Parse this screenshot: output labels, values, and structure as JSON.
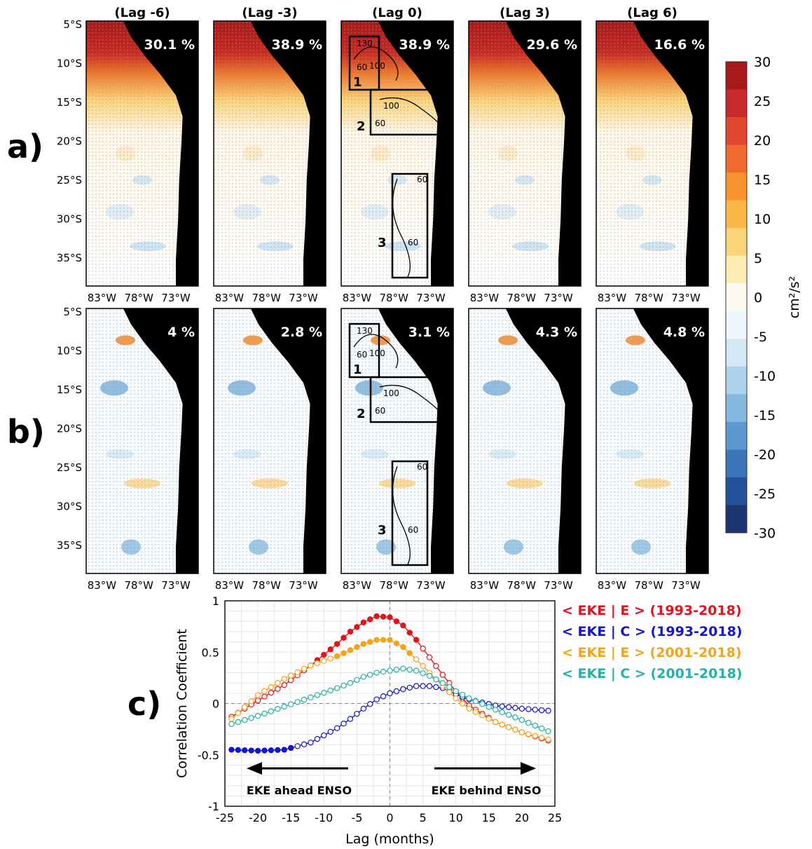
{
  "panel_letters": {
    "a": "a)",
    "b": "b)",
    "c": "c)"
  },
  "lag_titles": [
    "(Lag -6)",
    "(Lag -3)",
    "(Lag 0)",
    "(Lag 3)",
    "(Lag 6)"
  ],
  "map_lat_labels": [
    "5°S",
    "10°S",
    "15°S",
    "20°S",
    "25°S",
    "30°S",
    "35°S"
  ],
  "map_lon_labels": [
    "83°W",
    "78°W",
    "73°W"
  ],
  "row_a_percents": [
    "30.1 %",
    "38.9 %",
    "38.9 %",
    "29.6 %",
    "16.6 %"
  ],
  "row_b_percents": [
    "4 %",
    "2.8 %",
    "3.1 %",
    "4.3 %",
    "4.8 %"
  ],
  "box_labels": [
    "1",
    "2",
    "3"
  ],
  "contour_labels": [
    "130",
    "100",
    "60"
  ],
  "colorbar": {
    "unit": "cm²/s²",
    "ticks": [
      30,
      25,
      20,
      15,
      10,
      5,
      0,
      -5,
      -10,
      -15,
      -20,
      -25,
      -30
    ],
    "colors": [
      "#a8191b",
      "#c82a2b",
      "#e0462f",
      "#f06a2e",
      "#f7922f",
      "#fab646",
      "#fbd47a",
      "#fdecb4",
      "#fefaf0",
      "#eef6fb",
      "#d3e7f4",
      "#afd2ec",
      "#85b9e0",
      "#5d98cf",
      "#3b74b9",
      "#24509a",
      "#1a3570"
    ]
  },
  "chart_data": {
    "type": "line",
    "xlabel": "Lag (months)",
    "ylabel": "Correlation Coefficient",
    "xlim": [
      -25,
      25
    ],
    "ylim": [
      -1,
      1
    ],
    "xticks": [
      -25,
      -20,
      -15,
      -10,
      -5,
      0,
      5,
      10,
      15,
      20,
      25
    ],
    "yticks": [
      1,
      0.5,
      0,
      -0.5,
      -1
    ],
    "grid": true,
    "legend_position": "right-outside",
    "annotations": {
      "left": "EKE ahead ENSO",
      "right": "EKE behind ENSO"
    },
    "series": [
      {
        "name": "< EKE | E > (1993-2018)",
        "color": "#e8101a",
        "x": [
          -24,
          -20,
          -16,
          -12,
          -8,
          -6,
          -4,
          -2,
          0,
          2,
          4,
          6,
          8,
          10,
          12,
          16,
          20,
          24
        ],
        "values": [
          -0.13,
          0.03,
          0.18,
          0.37,
          0.58,
          0.7,
          0.79,
          0.85,
          0.84,
          0.76,
          0.62,
          0.45,
          0.28,
          0.12,
          -0.02,
          -0.18,
          -0.28,
          -0.36
        ],
        "filled_range": [
          -11,
          4
        ]
      },
      {
        "name": "< EKE | C > (1993-2018)",
        "color": "#1414d4",
        "x": [
          -24,
          -20,
          -16,
          -12,
          -8,
          -6,
          -4,
          -2,
          0,
          2,
          4,
          6,
          8,
          10,
          12,
          16,
          20,
          24
        ],
        "values": [
          -0.45,
          -0.46,
          -0.45,
          -0.38,
          -0.24,
          -0.15,
          -0.05,
          0.04,
          0.1,
          0.14,
          0.17,
          0.17,
          0.15,
          0.09,
          0.04,
          -0.02,
          -0.05,
          -0.07
        ],
        "filled_range": [
          -24,
          -15
        ]
      },
      {
        "name": "< EKE | E > (2001-2018)",
        "color": "#f5a31a",
        "x": [
          -24,
          -20,
          -16,
          -12,
          -8,
          -6,
          -4,
          -2,
          0,
          2,
          4,
          6,
          8,
          10,
          12,
          16,
          20,
          24
        ],
        "values": [
          -0.15,
          0.08,
          0.24,
          0.37,
          0.46,
          0.52,
          0.58,
          0.62,
          0.62,
          0.55,
          0.43,
          0.3,
          0.17,
          0.05,
          -0.05,
          -0.18,
          -0.28,
          -0.35
        ],
        "filled_range": [
          -8,
          3
        ]
      },
      {
        "name": "< EKE | C > (2001-2018)",
        "color": "#22b3a5",
        "x": [
          -24,
          -20,
          -16,
          -12,
          -8,
          -6,
          -4,
          -2,
          0,
          2,
          4,
          6,
          8,
          10,
          12,
          16,
          20,
          24
        ],
        "values": [
          -0.2,
          -0.12,
          -0.03,
          0.06,
          0.15,
          0.2,
          0.26,
          0.3,
          0.32,
          0.34,
          0.32,
          0.27,
          0.2,
          0.12,
          0.05,
          -0.06,
          -0.16,
          -0.27
        ],
        "filled_range": null
      }
    ]
  }
}
